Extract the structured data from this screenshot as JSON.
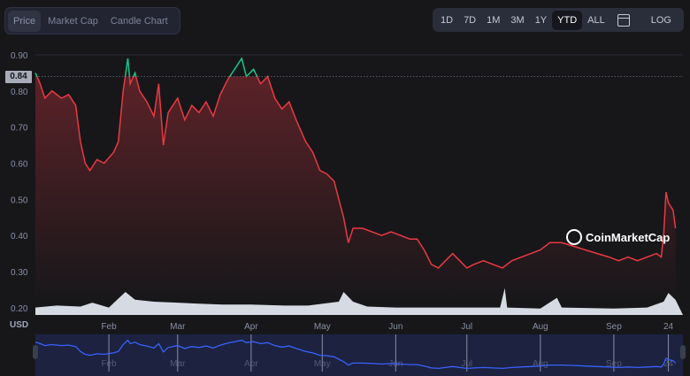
{
  "tabs": [
    "Price",
    "Market Cap",
    "Candle Chart"
  ],
  "ranges": [
    "1D",
    "7D",
    "1M",
    "3M",
    "1Y",
    "YTD",
    "ALL"
  ],
  "log_label": "LOG",
  "currency": "USD",
  "current_price_label": "0.84",
  "watermark": "CoinMarketCap",
  "colors": {
    "up": "#16c784",
    "down": "#ea3943",
    "navigator_line": "#3861fb",
    "volume": "#d6dae3"
  },
  "chart_data": {
    "type": "line",
    "y_ticks": [
      "0.90",
      "0.80",
      "0.70",
      "0.60",
      "0.50",
      "0.40",
      "0.30",
      "0.20"
    ],
    "ylim": [
      0.18,
      0.92
    ],
    "x_ticks": [
      {
        "date": "02-01",
        "label": "Feb"
      },
      {
        "date": "03-01",
        "label": "Mar"
      },
      {
        "date": "04-01",
        "label": "Apr"
      },
      {
        "date": "05-01",
        "label": "May"
      },
      {
        "date": "06-01",
        "label": "Jun"
      },
      {
        "date": "07-01",
        "label": "Jul"
      },
      {
        "date": "08-01",
        "label": "Aug"
      },
      {
        "date": "09-01",
        "label": "Sep"
      },
      {
        "date": "09-24",
        "label": "24"
      }
    ],
    "baseline": 0.84,
    "price": [
      [
        "01-01",
        0.85
      ],
      [
        "01-03",
        0.82
      ],
      [
        "01-05",
        0.78
      ],
      [
        "01-08",
        0.8
      ],
      [
        "01-12",
        0.78
      ],
      [
        "01-15",
        0.79
      ],
      [
        "01-18",
        0.76
      ],
      [
        "01-20",
        0.66
      ],
      [
        "01-22",
        0.6
      ],
      [
        "01-24",
        0.58
      ],
      [
        "01-27",
        0.61
      ],
      [
        "01-30",
        0.6
      ],
      [
        "02-03",
        0.63
      ],
      [
        "02-05",
        0.66
      ],
      [
        "02-07",
        0.8
      ],
      [
        "02-09",
        0.89
      ],
      [
        "02-10",
        0.82
      ],
      [
        "02-12",
        0.85
      ],
      [
        "02-14",
        0.8
      ],
      [
        "02-17",
        0.77
      ],
      [
        "02-20",
        0.73
      ],
      [
        "02-22",
        0.82
      ],
      [
        "02-24",
        0.65
      ],
      [
        "02-26",
        0.74
      ],
      [
        "03-01",
        0.78
      ],
      [
        "03-04",
        0.72
      ],
      [
        "03-07",
        0.76
      ],
      [
        "03-10",
        0.74
      ],
      [
        "03-13",
        0.77
      ],
      [
        "03-16",
        0.73
      ],
      [
        "03-19",
        0.79
      ],
      [
        "03-22",
        0.83
      ],
      [
        "03-25",
        0.86
      ],
      [
        "03-28",
        0.89
      ],
      [
        "03-30",
        0.84
      ],
      [
        "04-02",
        0.86
      ],
      [
        "04-05",
        0.82
      ],
      [
        "04-08",
        0.84
      ],
      [
        "04-11",
        0.78
      ],
      [
        "04-14",
        0.75
      ],
      [
        "04-17",
        0.77
      ],
      [
        "04-20",
        0.72
      ],
      [
        "04-24",
        0.66
      ],
      [
        "04-27",
        0.63
      ],
      [
        "04-30",
        0.58
      ],
      [
        "05-03",
        0.57
      ],
      [
        "05-06",
        0.55
      ],
      [
        "05-08",
        0.5
      ],
      [
        "05-10",
        0.45
      ],
      [
        "05-12",
        0.38
      ],
      [
        "05-14",
        0.42
      ],
      [
        "05-18",
        0.42
      ],
      [
        "05-22",
        0.41
      ],
      [
        "05-26",
        0.4
      ],
      [
        "05-30",
        0.41
      ],
      [
        "06-03",
        0.4
      ],
      [
        "06-07",
        0.39
      ],
      [
        "06-10",
        0.39
      ],
      [
        "06-13",
        0.36
      ],
      [
        "06-16",
        0.32
      ],
      [
        "06-19",
        0.31
      ],
      [
        "06-22",
        0.33
      ],
      [
        "06-25",
        0.35
      ],
      [
        "06-28",
        0.33
      ],
      [
        "07-01",
        0.31
      ],
      [
        "07-04",
        0.32
      ],
      [
        "07-08",
        0.33
      ],
      [
        "07-12",
        0.32
      ],
      [
        "07-16",
        0.31
      ],
      [
        "07-20",
        0.33
      ],
      [
        "07-24",
        0.34
      ],
      [
        "07-28",
        0.35
      ],
      [
        "08-01",
        0.36
      ],
      [
        "08-05",
        0.38
      ],
      [
        "08-10",
        0.38
      ],
      [
        "08-15",
        0.37
      ],
      [
        "08-20",
        0.36
      ],
      [
        "08-25",
        0.35
      ],
      [
        "08-30",
        0.34
      ],
      [
        "09-03",
        0.33
      ],
      [
        "09-07",
        0.34
      ],
      [
        "09-11",
        0.33
      ],
      [
        "09-15",
        0.34
      ],
      [
        "09-19",
        0.35
      ],
      [
        "09-21",
        0.34
      ],
      [
        "09-22",
        0.4
      ],
      [
        "09-23",
        0.52
      ],
      [
        "09-24",
        0.49
      ],
      [
        "09-26",
        0.47
      ],
      [
        "09-27",
        0.42
      ]
    ],
    "volume_relative": [
      [
        "01-01",
        0.2
      ],
      [
        "01-10",
        0.3
      ],
      [
        "01-20",
        0.25
      ],
      [
        "01-25",
        0.45
      ],
      [
        "02-01",
        0.2
      ],
      [
        "02-08",
        1.0
      ],
      [
        "02-12",
        0.6
      ],
      [
        "02-20",
        0.5
      ],
      [
        "03-01",
        0.45
      ],
      [
        "03-10",
        0.4
      ],
      [
        "03-20",
        0.35
      ],
      [
        "04-01",
        0.35
      ],
      [
        "04-15",
        0.3
      ],
      [
        "04-25",
        0.3
      ],
      [
        "05-08",
        0.5
      ],
      [
        "05-10",
        1.0
      ],
      [
        "05-14",
        0.5
      ],
      [
        "05-20",
        0.25
      ],
      [
        "06-01",
        0.2
      ],
      [
        "06-15",
        0.2
      ],
      [
        "07-01",
        0.2
      ],
      [
        "07-15",
        0.2
      ],
      [
        "07-17",
        1.2
      ],
      [
        "07-18",
        0.2
      ],
      [
        "08-01",
        0.15
      ],
      [
        "08-08",
        0.7
      ],
      [
        "08-10",
        0.2
      ],
      [
        "09-01",
        0.15
      ],
      [
        "09-15",
        0.2
      ],
      [
        "09-22",
        0.5
      ],
      [
        "09-24",
        0.95
      ],
      [
        "09-27",
        0.6
      ]
    ]
  }
}
